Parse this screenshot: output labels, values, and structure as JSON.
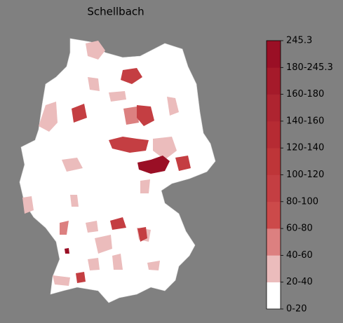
{
  "title": "Schellbach",
  "colorbar": {
    "tick_labels": [
      "245.3",
      "180-245.3",
      "160-180",
      "140-160",
      "120-140",
      "100-120",
      "80-100",
      "60-80",
      "40-60",
      "20-40",
      "0-20"
    ],
    "colors": [
      "#ffffff",
      "#ebbcbc",
      "#dc8080",
      "#cc4a4a",
      "#c43e42",
      "#be3538",
      "#b62b33",
      "#ae2430",
      "#a51a2a",
      "#9a0f25"
    ]
  }
}
